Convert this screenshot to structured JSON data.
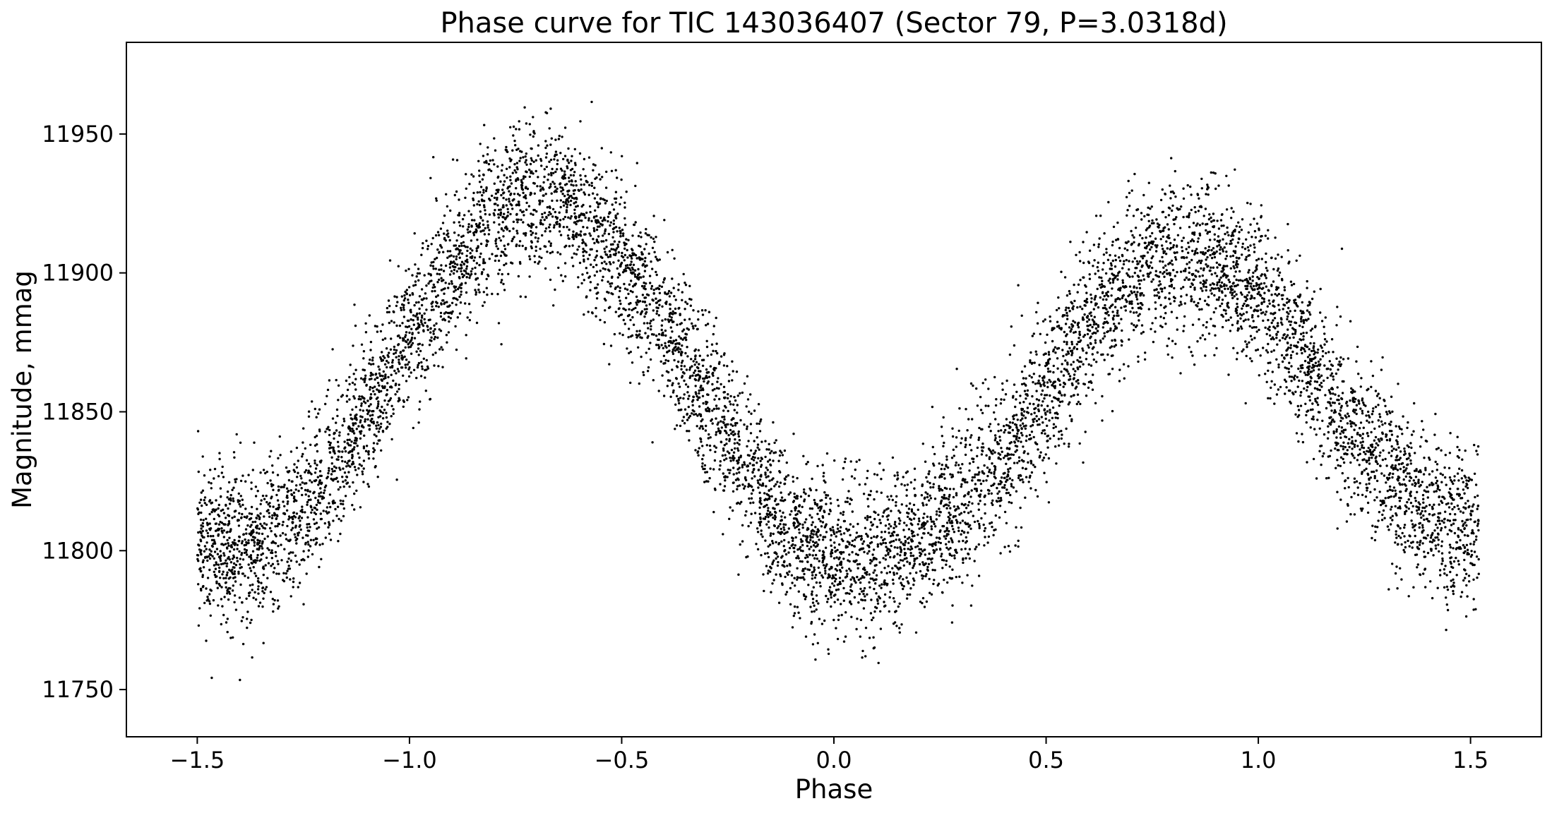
{
  "chart_data": {
    "type": "scatter",
    "title": "Phase curve for TIC 143036407 (Sector 79, P=3.0318d)",
    "xlabel": "Phase",
    "ylabel": "Magnitude, mmag",
    "xlim": [
      -1.667,
      1.667
    ],
    "ylim": [
      11733,
      11983
    ],
    "xticks": [
      -1.5,
      -1.0,
      -0.5,
      0.0,
      0.5,
      1.0,
      1.5
    ],
    "xtick_labels": [
      "−1.5",
      "−1.0",
      "−0.5",
      "0.0",
      "0.5",
      "1.0",
      "1.5"
    ],
    "yticks": [
      11750,
      11800,
      11850,
      11900,
      11950
    ],
    "ytick_labels": [
      "11750",
      "11800",
      "11850",
      "11900",
      "11950"
    ],
    "grid": false,
    "legend": "none",
    "marker_color": "#000000",
    "series": [
      {
        "x": [
          -1.5,
          -1.45,
          -1.4,
          -1.35,
          -1.3,
          -1.25,
          -1.2,
          -1.15,
          -1.1,
          -1.05,
          -1.0,
          -0.95,
          -0.9,
          -0.85,
          -0.8,
          -0.75,
          -0.7,
          -0.65,
          -0.6,
          -0.55,
          -0.5,
          -0.45,
          -0.4,
          -0.35,
          -0.3,
          -0.25,
          -0.2,
          -0.15,
          -0.1,
          -0.05,
          0.0,
          0.05,
          0.1,
          0.15,
          0.2,
          0.25,
          0.3,
          0.35,
          0.4,
          0.45,
          0.5,
          0.55,
          0.6,
          0.65,
          0.7,
          0.75,
          0.8,
          0.85,
          0.9,
          0.95,
          1.0,
          1.05,
          1.1,
          1.15,
          1.2,
          1.25,
          1.3,
          1.35,
          1.4,
          1.45,
          1.5
        ],
        "y": [
          11805,
          11802,
          11800,
          11802,
          11807,
          11815,
          11825,
          11837,
          11850,
          11864,
          11877,
          11890,
          11902,
          11912,
          11920,
          11925,
          11927,
          11925,
          11920,
          11912,
          11903,
          11892,
          11880,
          11867,
          11853,
          11840,
          11827,
          11815,
          11806,
          11800,
          11798,
          11797,
          11798,
          11800,
          11804,
          11810,
          11817,
          11825,
          11835,
          11846,
          11858,
          11870,
          11881,
          11890,
          11898,
          11903,
          11905,
          11905,
          11903,
          11898,
          11892,
          11883,
          11872,
          11860,
          11848,
          11837,
          11828,
          11820,
          11814,
          11810,
          11808
        ]
      }
    ]
  }
}
